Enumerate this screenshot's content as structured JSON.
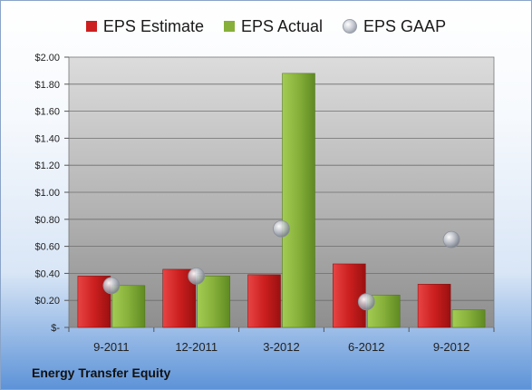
{
  "footer": {
    "company": "Energy Transfer Equity"
  },
  "colors": {
    "estimate": "#cc1f1f",
    "actual": "#86b03a",
    "gaap": "#b8bcc4"
  },
  "chart_data": {
    "type": "bar",
    "title": "",
    "xlabel": "",
    "ylabel": "",
    "categories": [
      "9-2011",
      "12-2011",
      "3-2012",
      "6-2012",
      "9-2012"
    ],
    "ylim": [
      0,
      2.0
    ],
    "yticks": [
      0,
      0.2,
      0.4,
      0.6,
      0.8,
      1.0,
      1.2,
      1.4,
      1.6,
      1.8,
      2.0
    ],
    "ytick_labels": [
      "$-",
      "$0.20",
      "$0.40",
      "$0.60",
      "$0.80",
      "$1.00",
      "$1.20",
      "$1.40",
      "$1.60",
      "$1.80",
      "$2.00"
    ],
    "grid": true,
    "legend_position": "top",
    "series": [
      {
        "name": "EPS Estimate",
        "kind": "bar",
        "values": [
          0.38,
          0.43,
          0.39,
          0.47,
          0.32
        ]
      },
      {
        "name": "EPS Actual",
        "kind": "bar",
        "values": [
          0.31,
          0.38,
          1.88,
          0.24,
          0.13
        ]
      },
      {
        "name": "EPS GAAP",
        "kind": "marker",
        "values": [
          0.31,
          0.38,
          0.73,
          0.19,
          0.65
        ]
      }
    ]
  }
}
